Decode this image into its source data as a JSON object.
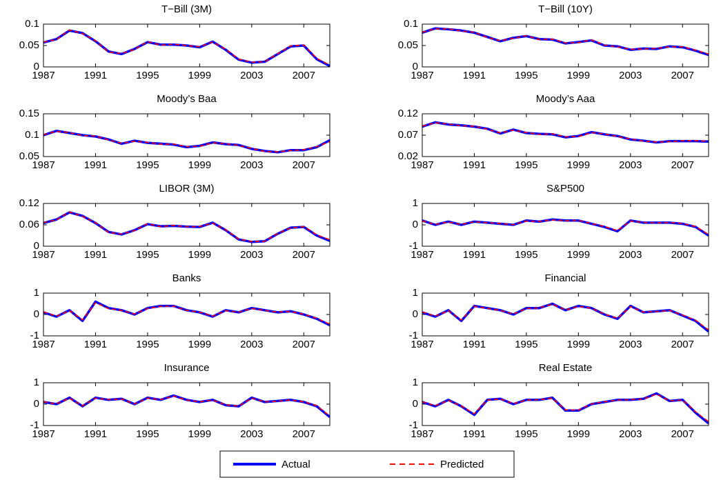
{
  "chart_data": [
    {
      "type": "line",
      "title": "T−Bill (3M)",
      "x": [
        1987,
        1988,
        1989,
        1990,
        1991,
        1992,
        1993,
        1994,
        1995,
        1996,
        1997,
        1998,
        1999,
        2000,
        2001,
        2002,
        2003,
        2004,
        2005,
        2006,
        2007,
        2008,
        2009
      ],
      "xlim": [
        1987,
        2009
      ],
      "xticks": [
        1987,
        1991,
        1995,
        1999,
        2003,
        2007
      ],
      "ylim": [
        0,
        0.1
      ],
      "yticks": [
        0,
        0.05,
        0.1
      ],
      "series": [
        {
          "name": "Actual",
          "color": "#0000ff",
          "style": "solid",
          "values": [
            0.057,
            0.065,
            0.085,
            0.079,
            0.06,
            0.036,
            0.03,
            0.042,
            0.058,
            0.052,
            0.052,
            0.05,
            0.046,
            0.059,
            0.04,
            0.017,
            0.01,
            0.012,
            0.03,
            0.048,
            0.05,
            0.018,
            0.002
          ]
        },
        {
          "name": "Predicted",
          "color": "#ff0000",
          "style": "dashed",
          "values": [
            0.058,
            0.064,
            0.086,
            0.078,
            0.061,
            0.035,
            0.031,
            0.041,
            0.059,
            0.051,
            0.053,
            0.05,
            0.047,
            0.058,
            0.041,
            0.018,
            0.011,
            0.012,
            0.031,
            0.049,
            0.051,
            0.02,
            0.004
          ]
        }
      ]
    },
    {
      "type": "line",
      "title": "T−Bill (10Y)",
      "x": [
        1987,
        1988,
        1989,
        1990,
        1991,
        1992,
        1993,
        1994,
        1995,
        1996,
        1997,
        1998,
        1999,
        2000,
        2001,
        2002,
        2003,
        2004,
        2005,
        2006,
        2007,
        2008,
        2009
      ],
      "xlim": [
        1987,
        2009
      ],
      "xticks": [
        1987,
        1991,
        1995,
        1999,
        2003,
        2007
      ],
      "ylim": [
        0,
        0.1
      ],
      "yticks": [
        0,
        0.05,
        0.1
      ],
      "series": [
        {
          "name": "Actual",
          "color": "#0000ff",
          "style": "solid",
          "values": [
            0.08,
            0.09,
            0.088,
            0.085,
            0.08,
            0.07,
            0.06,
            0.068,
            0.072,
            0.065,
            0.064,
            0.055,
            0.058,
            0.062,
            0.05,
            0.048,
            0.04,
            0.043,
            0.042,
            0.048,
            0.046,
            0.038,
            0.028
          ]
        },
        {
          "name": "Predicted",
          "color": "#ff0000",
          "style": "dashed",
          "values": [
            0.081,
            0.089,
            0.089,
            0.084,
            0.081,
            0.069,
            0.061,
            0.067,
            0.073,
            0.064,
            0.065,
            0.056,
            0.057,
            0.063,
            0.051,
            0.047,
            0.041,
            0.042,
            0.043,
            0.047,
            0.047,
            0.039,
            0.03
          ]
        }
      ]
    },
    {
      "type": "line",
      "title": "Moody’s Baa",
      "x": [
        1987,
        1988,
        1989,
        1990,
        1991,
        1992,
        1993,
        1994,
        1995,
        1996,
        1997,
        1998,
        1999,
        2000,
        2001,
        2002,
        2003,
        2004,
        2005,
        2006,
        2007,
        2008,
        2009
      ],
      "xlim": [
        1987,
        2009
      ],
      "xticks": [
        1987,
        1991,
        1995,
        1999,
        2003,
        2007
      ],
      "ylim": [
        0.05,
        0.15
      ],
      "yticks": [
        0.05,
        0.1,
        0.15
      ],
      "series": [
        {
          "name": "Actual",
          "color": "#0000ff",
          "style": "solid",
          "values": [
            0.1,
            0.11,
            0.105,
            0.1,
            0.097,
            0.09,
            0.08,
            0.087,
            0.082,
            0.08,
            0.078,
            0.072,
            0.075,
            0.083,
            0.079,
            0.077,
            0.068,
            0.063,
            0.06,
            0.065,
            0.065,
            0.072,
            0.088
          ]
        },
        {
          "name": "Predicted",
          "color": "#ff0000",
          "style": "dashed",
          "values": [
            0.101,
            0.109,
            0.106,
            0.099,
            0.098,
            0.089,
            0.081,
            0.086,
            0.083,
            0.079,
            0.079,
            0.073,
            0.074,
            0.082,
            0.08,
            0.076,
            0.069,
            0.062,
            0.061,
            0.064,
            0.066,
            0.073,
            0.085
          ]
        }
      ]
    },
    {
      "type": "line",
      "title": "Moody’s Aaa",
      "x": [
        1987,
        1988,
        1989,
        1990,
        1991,
        1992,
        1993,
        1994,
        1995,
        1996,
        1997,
        1998,
        1999,
        2000,
        2001,
        2002,
        2003,
        2004,
        2005,
        2006,
        2007,
        2008,
        2009
      ],
      "xlim": [
        1987,
        2009
      ],
      "xticks": [
        1987,
        1991,
        1995,
        1999,
        2003,
        2007
      ],
      "ylim": [
        0.02,
        0.12
      ],
      "yticks": [
        0.02,
        0.07,
        0.12
      ],
      "series": [
        {
          "name": "Actual",
          "color": "#0000ff",
          "style": "solid",
          "values": [
            0.09,
            0.1,
            0.095,
            0.093,
            0.09,
            0.085,
            0.074,
            0.083,
            0.075,
            0.073,
            0.072,
            0.065,
            0.068,
            0.077,
            0.072,
            0.068,
            0.06,
            0.057,
            0.053,
            0.056,
            0.056,
            0.056,
            0.055
          ]
        },
        {
          "name": "Predicted",
          "color": "#ff0000",
          "style": "dashed",
          "values": [
            0.091,
            0.099,
            0.096,
            0.092,
            0.091,
            0.084,
            0.075,
            0.082,
            0.076,
            0.072,
            0.073,
            0.066,
            0.067,
            0.076,
            0.073,
            0.067,
            0.061,
            0.056,
            0.054,
            0.055,
            0.057,
            0.057,
            0.056
          ]
        }
      ]
    },
    {
      "type": "line",
      "title": "LIBOR (3M)",
      "x": [
        1987,
        1988,
        1989,
        1990,
        1991,
        1992,
        1993,
        1994,
        1995,
        1996,
        1997,
        1998,
        1999,
        2000,
        2001,
        2002,
        2003,
        2004,
        2005,
        2006,
        2007,
        2008,
        2009
      ],
      "xlim": [
        1987,
        2009
      ],
      "xticks": [
        1987,
        1991,
        1995,
        1999,
        2003,
        2007
      ],
      "ylim": [
        0,
        0.12
      ],
      "yticks": [
        0,
        0.06,
        0.12
      ],
      "series": [
        {
          "name": "Actual",
          "color": "#0000ff",
          "style": "solid",
          "values": [
            0.065,
            0.075,
            0.095,
            0.085,
            0.065,
            0.04,
            0.033,
            0.045,
            0.062,
            0.056,
            0.057,
            0.055,
            0.054,
            0.066,
            0.045,
            0.019,
            0.012,
            0.014,
            0.035,
            0.052,
            0.054,
            0.03,
            0.015
          ]
        },
        {
          "name": "Predicted",
          "color": "#ff0000",
          "style": "dashed",
          "values": [
            0.066,
            0.074,
            0.096,
            0.084,
            0.066,
            0.039,
            0.034,
            0.044,
            0.063,
            0.055,
            0.058,
            0.055,
            0.055,
            0.065,
            0.046,
            0.02,
            0.013,
            0.014,
            0.036,
            0.051,
            0.055,
            0.032,
            0.018
          ]
        }
      ]
    },
    {
      "type": "line",
      "title": "S&P500",
      "x": [
        1987,
        1988,
        1989,
        1990,
        1991,
        1992,
        1993,
        1994,
        1995,
        1996,
        1997,
        1998,
        1999,
        2000,
        2001,
        2002,
        2003,
        2004,
        2005,
        2006,
        2007,
        2008,
        2009
      ],
      "xlim": [
        1987,
        2009
      ],
      "xticks": [
        1987,
        1991,
        1995,
        1999,
        2003,
        2007
      ],
      "ylim": [
        -1,
        1
      ],
      "yticks": [
        -1,
        0,
        1
      ],
      "series": [
        {
          "name": "Actual",
          "color": "#0000ff",
          "style": "solid",
          "values": [
            0.2,
            0,
            0.15,
            0,
            0.15,
            0.1,
            0.05,
            0,
            0.2,
            0.15,
            0.25,
            0.2,
            0.2,
            0.05,
            -0.1,
            -0.3,
            0.2,
            0.1,
            0.1,
            0.1,
            0.05,
            -0.1,
            -0.5
          ]
        },
        {
          "name": "Predicted",
          "color": "#ff0000",
          "style": "dashed",
          "values": [
            0.18,
            0.02,
            0.13,
            0.02,
            0.14,
            0.1,
            0.06,
            0.01,
            0.18,
            0.16,
            0.23,
            0.19,
            0.21,
            0.06,
            -0.08,
            -0.27,
            0.18,
            0.11,
            0.09,
            0.11,
            0.06,
            -0.08,
            -0.45
          ]
        }
      ]
    },
    {
      "type": "line",
      "title": "Banks",
      "x": [
        1987,
        1988,
        1989,
        1990,
        1991,
        1992,
        1993,
        1994,
        1995,
        1996,
        1997,
        1998,
        1999,
        2000,
        2001,
        2002,
        2003,
        2004,
        2005,
        2006,
        2007,
        2008,
        2009
      ],
      "xlim": [
        1987,
        2009
      ],
      "xticks": [
        1987,
        1991,
        1995,
        1999,
        2003,
        2007
      ],
      "ylim": [
        -1,
        1
      ],
      "yticks": [
        -1,
        0,
        1
      ],
      "series": [
        {
          "name": "Actual",
          "color": "#0000ff",
          "style": "solid",
          "values": [
            0.1,
            -0.1,
            0.2,
            -0.3,
            0.6,
            0.3,
            0.2,
            0,
            0.3,
            0.4,
            0.4,
            0.2,
            0.1,
            -0.1,
            0.2,
            0.1,
            0.3,
            0.2,
            0.1,
            0.15,
            0,
            -0.2,
            -0.5
          ]
        },
        {
          "name": "Predicted",
          "color": "#ff0000",
          "style": "dashed",
          "values": [
            0.12,
            -0.08,
            0.18,
            -0.25,
            0.55,
            0.28,
            0.19,
            0.02,
            0.28,
            0.38,
            0.39,
            0.19,
            0.11,
            -0.08,
            0.18,
            0.11,
            0.28,
            0.19,
            0.11,
            0.14,
            0.01,
            -0.18,
            -0.45
          ]
        }
      ]
    },
    {
      "type": "line",
      "title": "Financial",
      "x": [
        1987,
        1988,
        1989,
        1990,
        1991,
        1992,
        1993,
        1994,
        1995,
        1996,
        1997,
        1998,
        1999,
        2000,
        2001,
        2002,
        2003,
        2004,
        2005,
        2006,
        2007,
        2008,
        2009
      ],
      "xlim": [
        1987,
        2009
      ],
      "xticks": [
        1987,
        1991,
        1995,
        1999,
        2003,
        2007
      ],
      "ylim": [
        -1,
        1
      ],
      "yticks": [
        -1,
        0,
        1
      ],
      "series": [
        {
          "name": "Actual",
          "color": "#0000ff",
          "style": "solid",
          "values": [
            0.1,
            -0.1,
            0.2,
            -0.3,
            0.4,
            0.3,
            0.2,
            0,
            0.3,
            0.3,
            0.5,
            0.2,
            0.4,
            0.3,
            0,
            -0.2,
            0.4,
            0.1,
            0.15,
            0.2,
            -0.05,
            -0.3,
            -0.8
          ]
        },
        {
          "name": "Predicted",
          "color": "#ff0000",
          "style": "dashed",
          "values": [
            0.12,
            -0.08,
            0.18,
            -0.26,
            0.38,
            0.29,
            0.19,
            0.02,
            0.28,
            0.31,
            0.48,
            0.21,
            0.38,
            0.29,
            0.02,
            -0.18,
            0.37,
            0.11,
            0.14,
            0.19,
            -0.03,
            -0.27,
            -0.72
          ]
        }
      ]
    },
    {
      "type": "line",
      "title": "Insurance",
      "x": [
        1987,
        1988,
        1989,
        1990,
        1991,
        1992,
        1993,
        1994,
        1995,
        1996,
        1997,
        1998,
        1999,
        2000,
        2001,
        2002,
        2003,
        2004,
        2005,
        2006,
        2007,
        2008,
        2009
      ],
      "xlim": [
        1987,
        2009
      ],
      "xticks": [
        1987,
        1991,
        1995,
        1999,
        2003,
        2007
      ],
      "ylim": [
        -1,
        1
      ],
      "yticks": [
        -1,
        0,
        1
      ],
      "series": [
        {
          "name": "Actual",
          "color": "#0000ff",
          "style": "solid",
          "values": [
            0.1,
            0,
            0.3,
            -0.1,
            0.3,
            0.2,
            0.25,
            0,
            0.3,
            0.2,
            0.4,
            0.2,
            0.1,
            0.2,
            -0.05,
            -0.1,
            0.3,
            0.1,
            0.15,
            0.2,
            0.1,
            -0.1,
            -0.6
          ]
        },
        {
          "name": "Predicted",
          "color": "#ff0000",
          "style": "dashed",
          "values": [
            0.11,
            0.01,
            0.28,
            -0.08,
            0.28,
            0.21,
            0.24,
            0.01,
            0.28,
            0.21,
            0.38,
            0.19,
            0.11,
            0.19,
            -0.03,
            -0.09,
            0.28,
            0.11,
            0.14,
            0.19,
            0.11,
            -0.08,
            -0.55
          ]
        }
      ]
    },
    {
      "type": "line",
      "title": "Real Estate",
      "x": [
        1987,
        1988,
        1989,
        1990,
        1991,
        1992,
        1993,
        1994,
        1995,
        1996,
        1997,
        1998,
        1999,
        2000,
        2001,
        2002,
        2003,
        2004,
        2005,
        2006,
        2007,
        2008,
        2009
      ],
      "xlim": [
        1987,
        2009
      ],
      "xticks": [
        1987,
        1991,
        1995,
        1999,
        2003,
        2007
      ],
      "ylim": [
        -1,
        1
      ],
      "yticks": [
        -1,
        0,
        1
      ],
      "series": [
        {
          "name": "Actual",
          "color": "#0000ff",
          "style": "solid",
          "values": [
            0.1,
            -0.1,
            0.2,
            -0.1,
            -0.5,
            0.2,
            0.25,
            0,
            0.2,
            0.2,
            0.3,
            -0.3,
            -0.3,
            0,
            0.1,
            0.2,
            0.2,
            0.25,
            0.5,
            0.15,
            0.2,
            -0.4,
            -0.9
          ]
        },
        {
          "name": "Predicted",
          "color": "#ff0000",
          "style": "dashed",
          "values": [
            0.11,
            -0.08,
            0.18,
            -0.09,
            -0.45,
            0.19,
            0.24,
            0.02,
            0.19,
            0.21,
            0.28,
            -0.27,
            -0.28,
            0.01,
            0.11,
            0.19,
            0.21,
            0.24,
            0.47,
            0.16,
            0.19,
            -0.36,
            -0.82
          ]
        }
      ]
    }
  ]
}
